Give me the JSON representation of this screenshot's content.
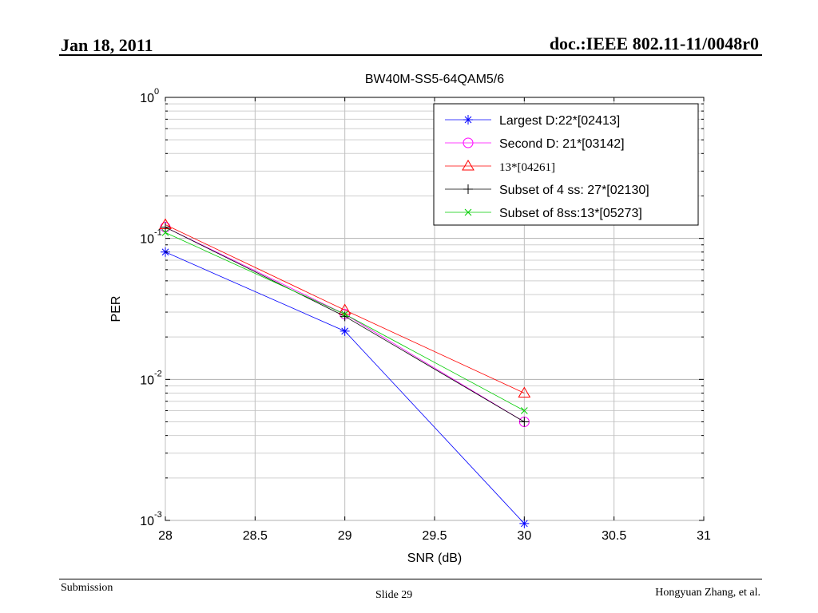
{
  "slide": {
    "date": "Jan 18, 2011",
    "doc_id": "doc.:IEEE 802.11-11/0048r0",
    "footer_left": "Submission",
    "footer_center": "Slide 29",
    "footer_right": "Hongyuan Zhang, et al."
  },
  "chart_data": {
    "type": "line",
    "title": "BW40M-SS5-64QAM5/6",
    "xlabel": "SNR (dB)",
    "ylabel": "PER",
    "xlim": [
      28,
      31
    ],
    "ylim": [
      0.001,
      1
    ],
    "y_scale": "log",
    "grid": true,
    "legend_position": "top-right",
    "x_ticks": [
      "28",
      "28.5",
      "29",
      "29.5",
      "30",
      "30.5",
      "31"
    ],
    "y_ticks": [
      {
        "base": "10",
        "exp": "0"
      },
      {
        "base": "10",
        "exp": "-1"
      },
      {
        "base": "10",
        "exp": "-2"
      },
      {
        "base": "10",
        "exp": "-3"
      }
    ],
    "x": [
      28,
      29,
      30
    ],
    "series": [
      {
        "name": "Largest D:22*[02413]",
        "color": "#0000ff",
        "marker": "star",
        "values": [
          0.08,
          0.022,
          0.00095
        ]
      },
      {
        "name": "Second D: 21*[03142]",
        "color": "#ff00ff",
        "marker": "circle",
        "values": [
          0.12,
          0.029,
          0.005
        ]
      },
      {
        "name": "13*[04261]",
        "color": "#ff0000",
        "marker": "triangle",
        "values": [
          0.125,
          0.031,
          0.008
        ]
      },
      {
        "name": "Subset of 4 ss: 27*[02130]",
        "color": "#000000",
        "marker": "plus",
        "values": [
          0.12,
          0.028,
          0.005
        ]
      },
      {
        "name": "Subset of 8ss:13*[05273]",
        "color": "#00cc00",
        "marker": "x",
        "values": [
          0.11,
          0.029,
          0.006
        ]
      }
    ]
  }
}
